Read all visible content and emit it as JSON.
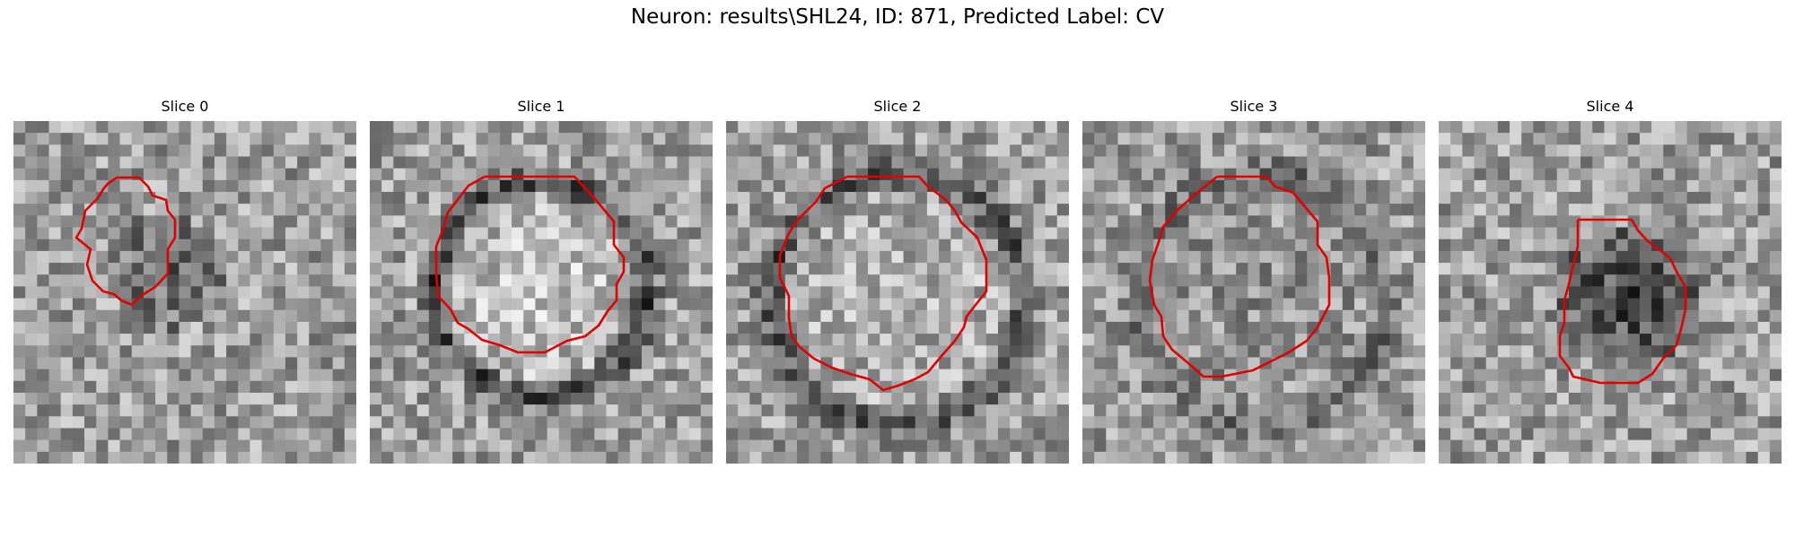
{
  "figure": {
    "title": "Neuron: results\\SHL24, ID: 871, Predicted Label: CV"
  },
  "panels": [
    {
      "title": "Slice 0"
    },
    {
      "title": "Slice 1"
    },
    {
      "title": "Slice 2"
    },
    {
      "title": "Slice 3"
    },
    {
      "title": "Slice 4"
    }
  ],
  "colors": {
    "contour": "#e00000",
    "background": "#ffffff"
  }
}
